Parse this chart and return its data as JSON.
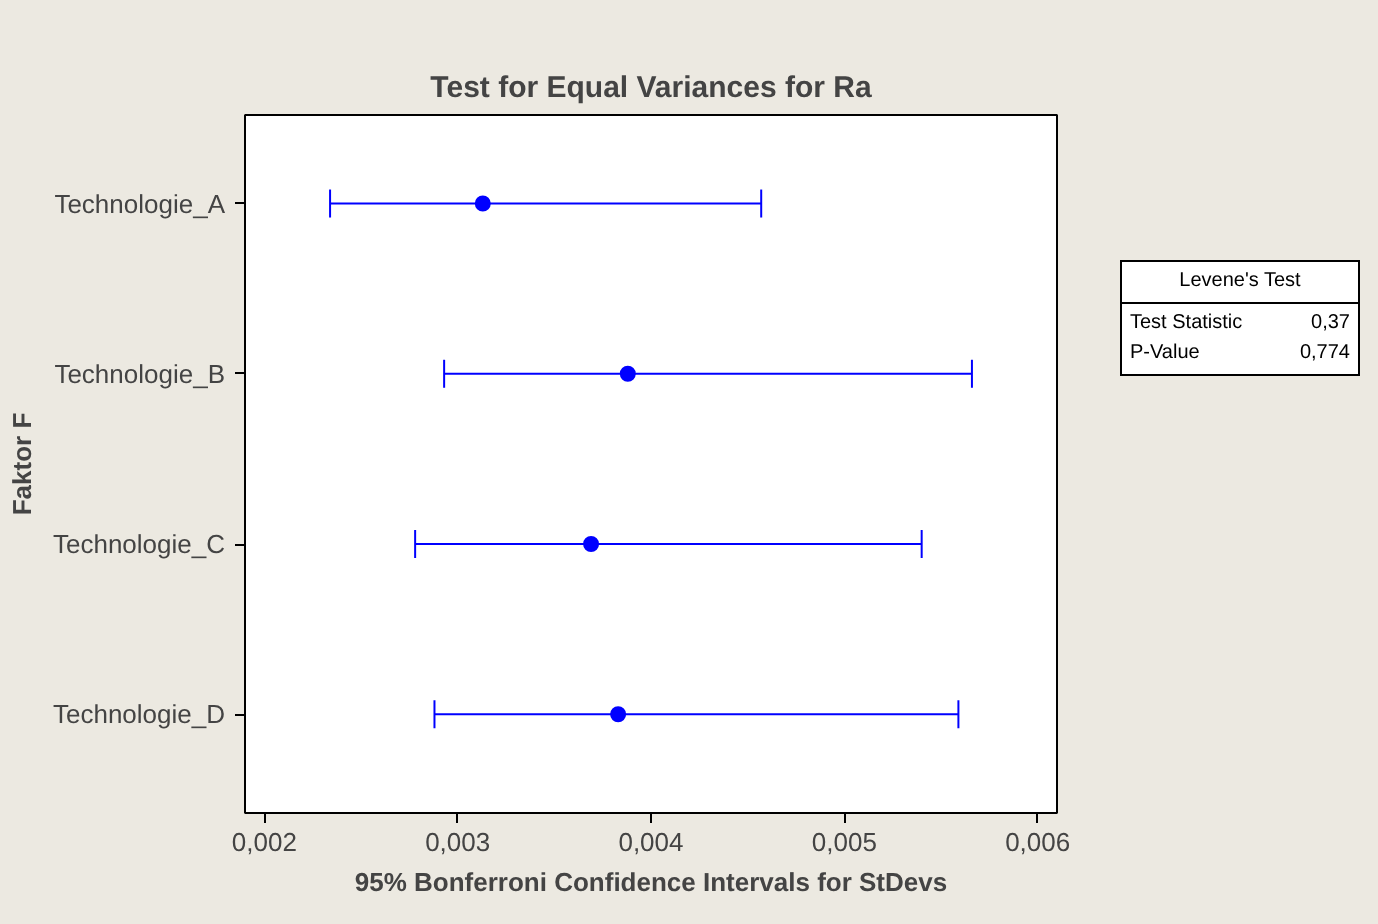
{
  "chart_data": {
    "type": "scatter",
    "orientation": "horizontal",
    "title": "Test for Equal Variances for Ra",
    "xlabel": "95% Bonferroni Confidence Intervals for StDevs",
    "ylabel": "Faktor F",
    "categories": [
      "Technologie_A",
      "Technologie_B",
      "Technologie_C",
      "Technologie_D"
    ],
    "series": [
      {
        "color": "#0000ff",
        "values": [
          0.00313,
          0.00388,
          0.00369,
          0.00383
        ],
        "errors": [
          [
            0.00234,
            0.00457
          ],
          [
            0.00293,
            0.00566
          ],
          [
            0.00278,
            0.0054
          ],
          [
            0.00288,
            0.00559
          ]
        ]
      }
    ],
    "marker": "circle",
    "grid": false,
    "xlim": [
      0.0019,
      0.0061
    ],
    "xticks": [
      {
        "value": 0.002,
        "label": "0,002"
      },
      {
        "value": 0.003,
        "label": "0,003"
      },
      {
        "value": 0.004,
        "label": "0,004"
      },
      {
        "value": 0.005,
        "label": "0,005"
      },
      {
        "value": 0.006,
        "label": "0,006"
      }
    ],
    "annotations": [
      "Levene's Test",
      "Test Statistic",
      "0,37",
      "P-Value",
      "0,774"
    ]
  }
}
